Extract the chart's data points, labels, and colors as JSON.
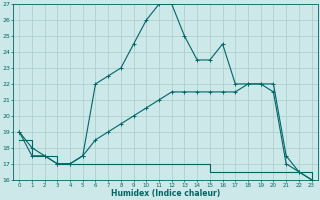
{
  "title": "",
  "xlabel": "Humidex (Indice chaleur)",
  "ylabel": "",
  "background_color": "#cce8e8",
  "grid_color": "#aacccc",
  "line_color": "#006666",
  "xlim": [
    -0.5,
    23.5
  ],
  "ylim": [
    16,
    27
  ],
  "xticks": [
    0,
    1,
    2,
    3,
    4,
    5,
    6,
    7,
    8,
    9,
    10,
    11,
    12,
    13,
    14,
    15,
    16,
    17,
    18,
    19,
    20,
    21,
    22,
    23
  ],
  "yticks": [
    16,
    17,
    18,
    19,
    20,
    21,
    22,
    23,
    24,
    25,
    26,
    27
  ],
  "line1_x": [
    0,
    1,
    2,
    3,
    4,
    5,
    6,
    7,
    8,
    9,
    10,
    11,
    12,
    13,
    14,
    15,
    16,
    17,
    18,
    19,
    20,
    21,
    22,
    23
  ],
  "line1_y": [
    19,
    17.5,
    17.5,
    17,
    17,
    17.5,
    22,
    22.5,
    23,
    24.5,
    26,
    27,
    27,
    25,
    23.5,
    23.5,
    24.5,
    22,
    22,
    22,
    22,
    17.5,
    16.5,
    16
  ],
  "line2_x": [
    0,
    1,
    2,
    3,
    4,
    5,
    6,
    7,
    8,
    9,
    10,
    11,
    12,
    13,
    14,
    15,
    16,
    17,
    18,
    19,
    20,
    21,
    22,
    23
  ],
  "line2_y": [
    18.5,
    17.5,
    17.5,
    17,
    17,
    17,
    17,
    17,
    17,
    17,
    17,
    17,
    17,
    17,
    17,
    16.5,
    16.5,
    16.5,
    16.5,
    16.5,
    16.5,
    16.5,
    16.5,
    16
  ],
  "line3_x": [
    0,
    1,
    2,
    3,
    4,
    5,
    6,
    7,
    8,
    9,
    10,
    11,
    12,
    13,
    14,
    15,
    16,
    17,
    18,
    19,
    20,
    21,
    22,
    23
  ],
  "line3_y": [
    19,
    18,
    17.5,
    17,
    17,
    17.5,
    18.5,
    19,
    19.5,
    20,
    20.5,
    21,
    21.5,
    21.5,
    21.5,
    21.5,
    21.5,
    21.5,
    22,
    22,
    21.5,
    17,
    16.5,
    16
  ]
}
